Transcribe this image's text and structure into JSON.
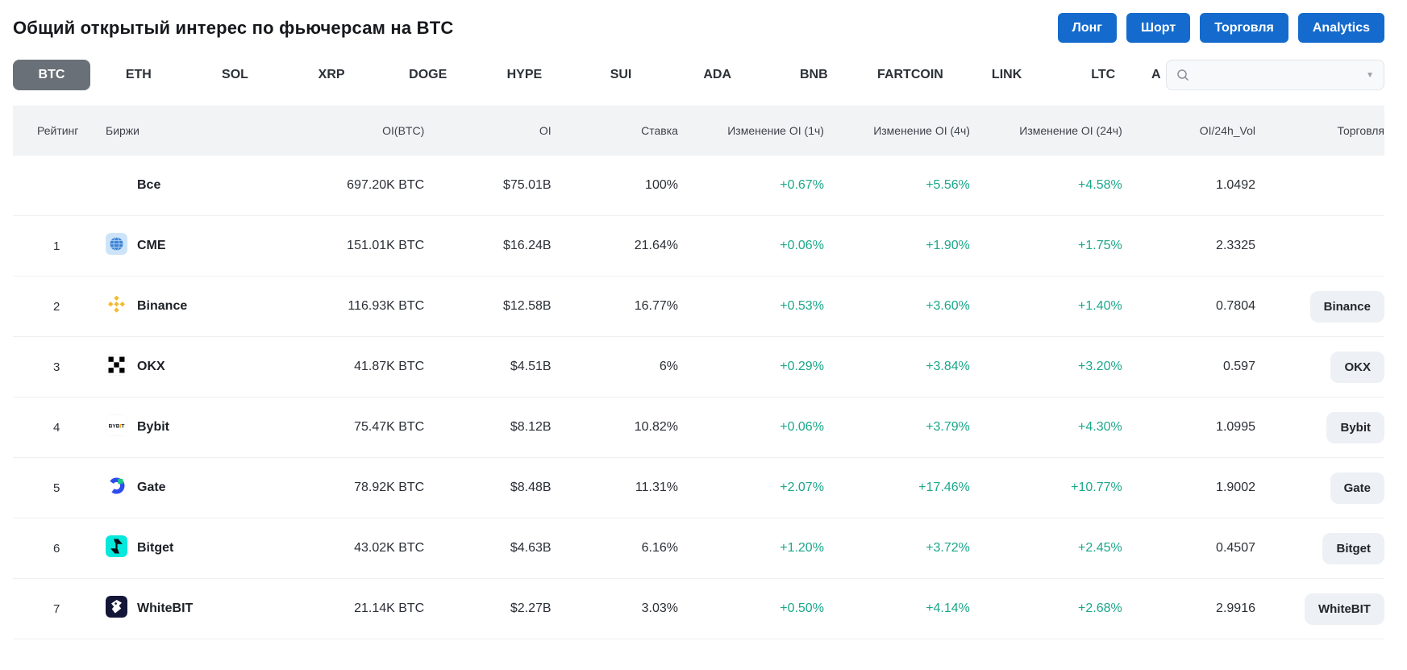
{
  "header": {
    "title": "Общий открытый интерес по фьючерсам на BTC",
    "actions": [
      {
        "id": "long-button",
        "label": "Лонг"
      },
      {
        "id": "short-button",
        "label": "Шорт"
      },
      {
        "id": "trade-button",
        "label": "Торговля"
      },
      {
        "id": "analytics-button",
        "label": "Analytics"
      }
    ]
  },
  "tabs": {
    "items": [
      "BTC",
      "ETH",
      "SOL",
      "XRP",
      "DOGE",
      "HYPE",
      "SUI",
      "ADA",
      "BNB",
      "FARTCOIN",
      "LINK",
      "LTC"
    ],
    "partial_item": "A",
    "selected": "BTC"
  },
  "search": {
    "placeholder": "",
    "value": ""
  },
  "table": {
    "columns": [
      "Рейтинг",
      "Биржи",
      "OI(BTC)",
      "OI",
      "Ставка",
      "Изменение OI (1ч)",
      "Изменение OI (4ч)",
      "Изменение OI (24ч)",
      "OI/24h_Vol",
      "Торговля"
    ],
    "rows": [
      {
        "rank": "",
        "exchange": "Все",
        "icon": "",
        "oi_btc": "697.20K BTC",
        "oi": "$75.01B",
        "rate": "100%",
        "change_1h": "+0.67%",
        "change_4h": "+5.56%",
        "change_24h": "+4.58%",
        "oi_24h_vol": "1.0492",
        "trade": ""
      },
      {
        "rank": "1",
        "exchange": "CME",
        "icon": "cme-icon",
        "oi_btc": "151.01K BTC",
        "oi": "$16.24B",
        "rate": "21.64%",
        "change_1h": "+0.06%",
        "change_4h": "+1.90%",
        "change_24h": "+1.75%",
        "oi_24h_vol": "2.3325",
        "trade": ""
      },
      {
        "rank": "2",
        "exchange": "Binance",
        "icon": "binance-icon",
        "oi_btc": "116.93K BTC",
        "oi": "$12.58B",
        "rate": "16.77%",
        "change_1h": "+0.53%",
        "change_4h": "+3.60%",
        "change_24h": "+1.40%",
        "oi_24h_vol": "0.7804",
        "trade": "Binance"
      },
      {
        "rank": "3",
        "exchange": "OKX",
        "icon": "okx-icon",
        "oi_btc": "41.87K BTC",
        "oi": "$4.51B",
        "rate": "6%",
        "change_1h": "+0.29%",
        "change_4h": "+3.84%",
        "change_24h": "+3.20%",
        "oi_24h_vol": "0.597",
        "trade": "OKX"
      },
      {
        "rank": "4",
        "exchange": "Bybit",
        "icon": "bybit-icon",
        "oi_btc": "75.47K BTC",
        "oi": "$8.12B",
        "rate": "10.82%",
        "change_1h": "+0.06%",
        "change_4h": "+3.79%",
        "change_24h": "+4.30%",
        "oi_24h_vol": "1.0995",
        "trade": "Bybit"
      },
      {
        "rank": "5",
        "exchange": "Gate",
        "icon": "gate-icon",
        "oi_btc": "78.92K BTC",
        "oi": "$8.48B",
        "rate": "11.31%",
        "change_1h": "+2.07%",
        "change_4h": "+17.46%",
        "change_24h": "+10.77%",
        "oi_24h_vol": "1.9002",
        "trade": "Gate"
      },
      {
        "rank": "6",
        "exchange": "Bitget",
        "icon": "bitget-icon",
        "oi_btc": "43.02K BTC",
        "oi": "$4.63B",
        "rate": "6.16%",
        "change_1h": "+1.20%",
        "change_4h": "+3.72%",
        "change_24h": "+2.45%",
        "oi_24h_vol": "0.4507",
        "trade": "Bitget"
      },
      {
        "rank": "7",
        "exchange": "WhiteBIT",
        "icon": "whitebit-icon",
        "oi_btc": "21.14K BTC",
        "oi": "$2.27B",
        "rate": "3.03%",
        "change_1h": "+0.50%",
        "change_4h": "+4.14%",
        "change_24h": "+2.68%",
        "oi_24h_vol": "2.9916",
        "trade": "WhiteBIT"
      }
    ]
  },
  "colors": {
    "accent_blue": "#146BCD",
    "positive_green": "#1BA78A",
    "selected_tab_bg": "#6A7077",
    "header_row_bg": "#F2F3F5",
    "trade_pill_bg": "#EDF0F4",
    "binance_yellow": "#F3BA2F",
    "bybit_gold": "#F7A600",
    "gate_blue": "#2D4CEE",
    "gate_green": "#17C784",
    "bitget_cyan": "#06E8DC",
    "whitebit_navy": "#131637",
    "cme_blue": "#3B82D6"
  }
}
